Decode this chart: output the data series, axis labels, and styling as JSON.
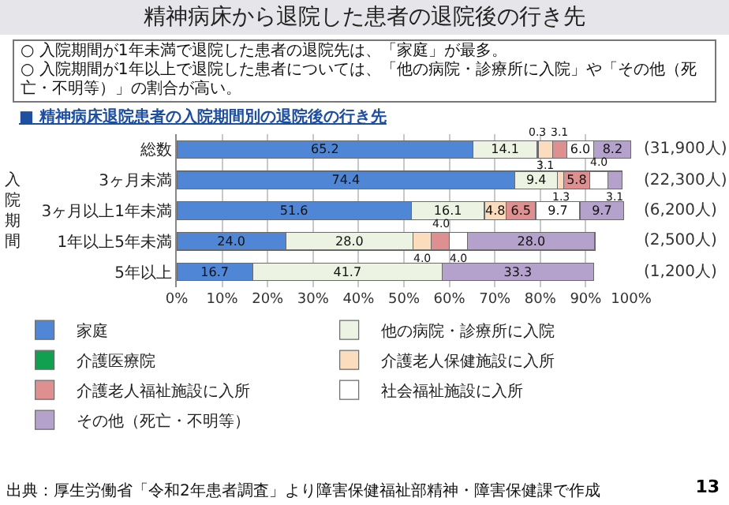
{
  "chart_data": {
    "type": "bar",
    "orientation": "horizontal",
    "stacked": true,
    "title": "精神病床から退院した患者の退院後の行き先",
    "subtitle": "○ 入院期間が1年未満で退院した患者の退院先は、「家庭」が最多。\n○ 入院期間が1年以上で退院した患者については、「他の病院・診療所に入院」や「その他（死亡・不明等）」の割合が高い。",
    "ylabel": "入院期間",
    "categories": [
      "総数",
      "3ヶ月未満",
      "3ヶ月以上1年未満",
      "1年以上5年未満",
      "5年以上"
    ],
    "series": [
      {
        "name": "家庭",
        "color": "#4f86d6",
        "values": [
          65.2,
          74.4,
          51.6,
          24.0,
          16.7
        ],
        "value_labels": [
          "65.2",
          "74.4",
          "51.6",
          "24.0",
          "16.7"
        ]
      },
      {
        "name": "他の病院・診療所に入院",
        "color": "#edf3e2",
        "values": [
          14.1,
          9.4,
          16.1,
          28.0,
          41.7
        ],
        "value_labels": [
          "14.1",
          "9.4",
          "16.1",
          "28.0",
          "41.7"
        ]
      },
      {
        "name": "介護医療院",
        "color": "#10a050",
        "values": [
          0.3,
          null,
          null,
          null,
          null
        ],
        "value_labels": [
          "0.3",
          null,
          null,
          null,
          null
        ]
      },
      {
        "name": "介護老人保健施設に入所",
        "color": "#fbdcbc",
        "values": [
          3.1,
          1.3,
          4.8,
          4.0,
          null
        ],
        "value_labels": [
          "3.1",
          "1.3",
          "4.8",
          "4.0",
          null
        ]
      },
      {
        "name": "介護老人福祉施設に入所",
        "color": "#de9090",
        "values": [
          3.1,
          5.8,
          6.5,
          4.0,
          null
        ],
        "value_labels": [
          "3.1",
          "5.8",
          "6.5",
          "4.0",
          null
        ]
      },
      {
        "name": "社会福祉施設に入所",
        "color": "#ffffff",
        "values": [
          6.0,
          4.0,
          9.7,
          4.0,
          null
        ],
        "value_labels": [
          "6.0",
          "4.0",
          "9.7",
          "4.0",
          null
        ]
      },
      {
        "name": "その他（死亡・不明等）",
        "color": "#b4a2cc",
        "values": [
          8.2,
          3.1,
          9.7,
          28.0,
          33.3
        ],
        "value_labels": [
          "8.2",
          "3.1",
          "9.7",
          "28.0",
          "33.3"
        ]
      }
    ],
    "xlim": [
      0,
      100
    ],
    "xticks": [
      {
        "value": 0,
        "label": "0%"
      },
      {
        "value": 10,
        "label": "10%"
      },
      {
        "value": 20,
        "label": "20%"
      },
      {
        "value": 30,
        "label": "30%"
      },
      {
        "value": 40,
        "label": "40%"
      },
      {
        "value": 50,
        "label": "50%"
      },
      {
        "value": 60,
        "label": "60%"
      },
      {
        "value": 70,
        "label": "70%"
      },
      {
        "value": 80,
        "label": "80%"
      },
      {
        "value": 90,
        "label": "90%"
      },
      {
        "value": 100,
        "label": "100%"
      }
    ],
    "grid": "x",
    "legend": "bottom",
    "annotations": [
      "■ 精神病床退院患者の入院期間別の退院後の行き先",
      "(31,900人)",
      "(22,300人)",
      "(6,200人)",
      "(2,500人)",
      "(1,200人)",
      "出典：厚生労働省「令和2年患者調査」より障害保健福祉部精神・障害保健課で作成",
      "13"
    ]
  }
}
